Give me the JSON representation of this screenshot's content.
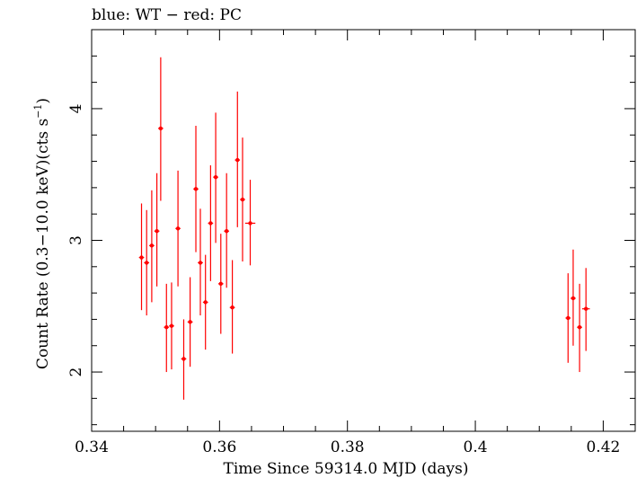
{
  "chart_data": {
    "type": "scatter",
    "title": "blue: WT − red: PC",
    "xlabel": "Time Since 59314.0 MJD (days)",
    "ylabel_main": "Count Rate (0.3−10.0 keV)(cts s",
    "ylabel_sup": "−1",
    "ylabel_tail": ")",
    "xlim": [
      0.34,
      0.425
    ],
    "ylim": [
      1.55,
      4.6
    ],
    "xticks": [
      0.34,
      0.36,
      0.38,
      0.4,
      0.42
    ],
    "xtick_labels": [
      "0.34",
      "0.36",
      "0.38",
      "0.4",
      "0.42"
    ],
    "yticks": [
      2,
      3,
      4
    ],
    "ytick_labels": [
      "2",
      "3",
      "4"
    ],
    "grid": false,
    "series": [
      {
        "color": "#ff0000",
        "points": [
          {
            "x": 0.3478,
            "y": 2.87,
            "xerr": 0.0004,
            "ylo": 2.47,
            "yhi": 3.28
          },
          {
            "x": 0.3486,
            "y": 2.83,
            "xerr": 0.0004,
            "ylo": 2.43,
            "yhi": 3.23
          },
          {
            "x": 0.3494,
            "y": 2.96,
            "xerr": 0.0004,
            "ylo": 2.53,
            "yhi": 3.38
          },
          {
            "x": 0.3502,
            "y": 3.07,
            "xerr": 0.0004,
            "ylo": 2.65,
            "yhi": 3.51
          },
          {
            "x": 0.3508,
            "y": 3.85,
            "xerr": 0.0004,
            "ylo": 3.3,
            "yhi": 4.39
          },
          {
            "x": 0.3517,
            "y": 2.34,
            "xerr": 0.0004,
            "ylo": 2.0,
            "yhi": 2.67
          },
          {
            "x": 0.3525,
            "y": 2.35,
            "xerr": 0.0004,
            "ylo": 2.02,
            "yhi": 2.68
          },
          {
            "x": 0.3535,
            "y": 3.09,
            "xerr": 0.0004,
            "ylo": 2.65,
            "yhi": 3.53
          },
          {
            "x": 0.3544,
            "y": 2.1,
            "xerr": 0.0004,
            "ylo": 1.79,
            "yhi": 2.4
          },
          {
            "x": 0.3554,
            "y": 2.38,
            "xerr": 0.0004,
            "ylo": 2.04,
            "yhi": 2.72
          },
          {
            "x": 0.3563,
            "y": 3.39,
            "xerr": 0.0004,
            "ylo": 2.91,
            "yhi": 3.87
          },
          {
            "x": 0.357,
            "y": 2.83,
            "xerr": 0.0004,
            "ylo": 2.43,
            "yhi": 3.24
          },
          {
            "x": 0.3578,
            "y": 2.53,
            "xerr": 0.0004,
            "ylo": 2.17,
            "yhi": 2.89
          },
          {
            "x": 0.3586,
            "y": 3.13,
            "xerr": 0.0004,
            "ylo": 2.69,
            "yhi": 3.57
          },
          {
            "x": 0.3594,
            "y": 3.48,
            "xerr": 0.0004,
            "ylo": 2.98,
            "yhi": 3.97
          },
          {
            "x": 0.3602,
            "y": 2.67,
            "xerr": 0.0004,
            "ylo": 2.29,
            "yhi": 3.05
          },
          {
            "x": 0.3611,
            "y": 3.07,
            "xerr": 0.0004,
            "ylo": 2.64,
            "yhi": 3.51
          },
          {
            "x": 0.362,
            "y": 2.49,
            "xerr": 0.0004,
            "ylo": 2.14,
            "yhi": 2.85
          },
          {
            "x": 0.3628,
            "y": 3.61,
            "xerr": 0.0004,
            "ylo": 3.1,
            "yhi": 4.13
          },
          {
            "x": 0.3636,
            "y": 3.31,
            "xerr": 0.0004,
            "ylo": 2.84,
            "yhi": 3.78
          },
          {
            "x": 0.3648,
            "y": 3.13,
            "xerr": 0.0008,
            "ylo": 2.81,
            "yhi": 3.46
          },
          {
            "x": 0.4145,
            "y": 2.41,
            "xerr": 0.0004,
            "ylo": 2.07,
            "yhi": 2.75
          },
          {
            "x": 0.4153,
            "y": 2.56,
            "xerr": 0.0004,
            "ylo": 2.2,
            "yhi": 2.93
          },
          {
            "x": 0.4163,
            "y": 2.34,
            "xerr": 0.0004,
            "ylo": 2.0,
            "yhi": 2.67
          },
          {
            "x": 0.4173,
            "y": 2.48,
            "xerr": 0.0006,
            "ylo": 2.16,
            "yhi": 2.79
          }
        ]
      }
    ]
  }
}
